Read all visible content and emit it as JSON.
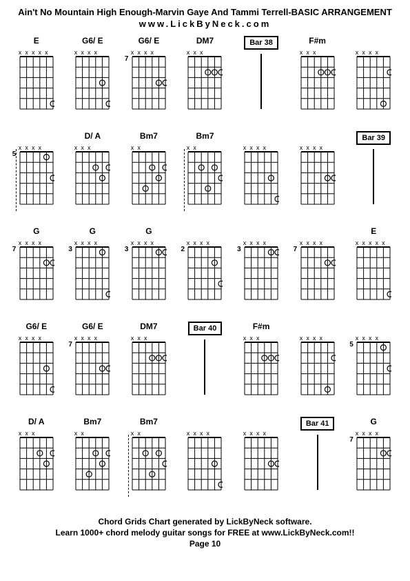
{
  "title": "Ain't No Mountain High Enough-Marvin Gaye And Tammi Terrell-BASIC ARRANGEMENT",
  "subtitle": "www.LickByNeck.com",
  "footer": {
    "line1": "Chord Grids Chart generated by LickByNeck software.",
    "line2": "Learn 1000+ chord melody guitar songs for FREE at www.LickByNeck.com!!",
    "line3": "Page 10"
  },
  "diagram": {
    "width": 52,
    "height": 90,
    "strings": 6,
    "frets": 5,
    "gridColor": "#000000",
    "dotRadius": 4
  },
  "rows": [
    [
      {
        "type": "chord",
        "label": "E",
        "fret": "",
        "mutes": [
          0,
          1,
          2,
          3,
          4
        ],
        "dots": [
          [
            5,
            5
          ]
        ]
      },
      {
        "type": "chord",
        "label": "G6/ E",
        "fret": "",
        "mutes": [
          0,
          1,
          2,
          3
        ],
        "dots": [
          [
            4,
            3
          ],
          [
            5,
            5
          ]
        ]
      },
      {
        "type": "chord",
        "label": "G6/ E",
        "fret": "7",
        "mutes": [
          0,
          1,
          2,
          3
        ],
        "dots": [
          [
            4,
            3
          ],
          [
            5,
            3
          ]
        ]
      },
      {
        "type": "chord",
        "label": "DM7",
        "fret": "",
        "mutes": [
          0,
          1,
          2
        ],
        "dots": [
          [
            3,
            2
          ],
          [
            4,
            2
          ],
          [
            5,
            2
          ]
        ]
      },
      {
        "type": "bar",
        "label": "Bar 38"
      },
      {
        "type": "chord",
        "label": "F#m",
        "fret": "",
        "mutes": [
          0,
          1,
          2
        ],
        "dots": [
          [
            3,
            2
          ],
          [
            4,
            2
          ],
          [
            5,
            2
          ]
        ]
      },
      {
        "type": "chord",
        "label": "",
        "fret": "",
        "mutes": [
          0,
          1,
          2,
          3
        ],
        "dots": [
          [
            4,
            5
          ],
          [
            5,
            2
          ]
        ]
      }
    ],
    [
      {
        "type": "chord",
        "label": "",
        "fret": "5",
        "mutes": [
          0,
          1,
          2,
          3
        ],
        "dashed": true,
        "dots": [
          [
            4,
            1
          ],
          [
            5,
            3
          ]
        ]
      },
      {
        "type": "chord",
        "label": "D/ A",
        "fret": "",
        "mutes": [
          0,
          1,
          2
        ],
        "dots": [
          [
            3,
            2
          ],
          [
            4,
            3
          ],
          [
            5,
            2
          ]
        ]
      },
      {
        "type": "chord",
        "label": "Bm7",
        "fret": "",
        "mutes": [
          0,
          1
        ],
        "dots": [
          [
            2,
            4
          ],
          [
            3,
            2
          ],
          [
            4,
            3
          ],
          [
            5,
            2
          ]
        ]
      },
      {
        "type": "chord",
        "label": "Bm7",
        "fret": "",
        "mutes": [
          0,
          1
        ],
        "dashed": true,
        "dots": [
          [
            2,
            2
          ],
          [
            3,
            4
          ],
          [
            4,
            2
          ],
          [
            5,
            3
          ]
        ]
      },
      {
        "type": "chord",
        "label": "",
        "fret": "",
        "mutes": [
          0,
          1,
          2,
          3
        ],
        "dots": [
          [
            4,
            3
          ],
          [
            5,
            5
          ]
        ]
      },
      {
        "type": "chord",
        "label": "",
        "fret": "",
        "mutes": [
          0,
          1,
          2,
          3
        ],
        "dots": [
          [
            4,
            3
          ],
          [
            5,
            3
          ]
        ]
      },
      {
        "type": "bar",
        "label": "Bar 39"
      }
    ],
    [
      {
        "type": "chord",
        "label": "G",
        "fret": "7",
        "mutes": [
          0,
          1,
          2,
          3
        ],
        "dots": [
          [
            4,
            2
          ],
          [
            5,
            2
          ]
        ]
      },
      {
        "type": "chord",
        "label": "G",
        "fret": "3",
        "mutes": [
          0,
          1,
          2,
          3
        ],
        "dots": [
          [
            4,
            1
          ],
          [
            5,
            5
          ]
        ]
      },
      {
        "type": "chord",
        "label": "G",
        "fret": "3",
        "mutes": [
          0,
          1,
          2,
          3
        ],
        "dots": [
          [
            4,
            1
          ],
          [
            5,
            1
          ]
        ]
      },
      {
        "type": "chord",
        "label": "",
        "fret": "2",
        "mutes": [
          0,
          1,
          2,
          3
        ],
        "dots": [
          [
            4,
            2
          ],
          [
            5,
            4
          ]
        ]
      },
      {
        "type": "chord",
        "label": "",
        "fret": "3",
        "mutes": [
          0,
          1,
          2,
          3
        ],
        "dots": [
          [
            4,
            1
          ],
          [
            5,
            1
          ]
        ]
      },
      {
        "type": "chord",
        "label": "",
        "fret": "7",
        "mutes": [
          0,
          1,
          2,
          3
        ],
        "dots": [
          [
            4,
            2
          ],
          [
            5,
            2
          ]
        ]
      },
      {
        "type": "chord",
        "label": "E",
        "fret": "",
        "mutes": [
          0,
          1,
          2,
          3,
          4
        ],
        "dots": [
          [
            5,
            5
          ]
        ]
      }
    ],
    [
      {
        "type": "chord",
        "label": "G6/ E",
        "fret": "",
        "mutes": [
          0,
          1,
          2,
          3
        ],
        "dots": [
          [
            4,
            3
          ],
          [
            5,
            5
          ]
        ]
      },
      {
        "type": "chord",
        "label": "G6/ E",
        "fret": "7",
        "mutes": [
          0,
          1,
          2,
          3
        ],
        "dots": [
          [
            4,
            3
          ],
          [
            5,
            3
          ]
        ]
      },
      {
        "type": "chord",
        "label": "DM7",
        "fret": "",
        "mutes": [
          0,
          1,
          2
        ],
        "dots": [
          [
            3,
            2
          ],
          [
            4,
            2
          ],
          [
            5,
            2
          ]
        ]
      },
      {
        "type": "bar",
        "label": "Bar 40"
      },
      {
        "type": "chord",
        "label": "F#m",
        "fret": "",
        "mutes": [
          0,
          1,
          2
        ],
        "dots": [
          [
            3,
            2
          ],
          [
            4,
            2
          ],
          [
            5,
            2
          ]
        ]
      },
      {
        "type": "chord",
        "label": "",
        "fret": "",
        "mutes": [
          0,
          1,
          2,
          3
        ],
        "dots": [
          [
            4,
            5
          ],
          [
            5,
            2
          ]
        ]
      },
      {
        "type": "chord",
        "label": "",
        "fret": "5",
        "mutes": [
          0,
          1,
          2,
          3
        ],
        "dots": [
          [
            4,
            1
          ],
          [
            5,
            3
          ]
        ]
      }
    ],
    [
      {
        "type": "chord",
        "label": "D/ A",
        "fret": "",
        "mutes": [
          0,
          1,
          2
        ],
        "dots": [
          [
            3,
            2
          ],
          [
            4,
            3
          ],
          [
            5,
            2
          ]
        ]
      },
      {
        "type": "chord",
        "label": "Bm7",
        "fret": "",
        "mutes": [
          0,
          1
        ],
        "dots": [
          [
            2,
            4
          ],
          [
            3,
            2
          ],
          [
            4,
            3
          ],
          [
            5,
            2
          ]
        ]
      },
      {
        "type": "chord",
        "label": "Bm7",
        "fret": "",
        "mutes": [
          0,
          1
        ],
        "dashed": true,
        "dots": [
          [
            2,
            2
          ],
          [
            3,
            4
          ],
          [
            4,
            2
          ],
          [
            5,
            3
          ]
        ]
      },
      {
        "type": "chord",
        "label": "",
        "fret": "",
        "mutes": [
          0,
          1,
          2,
          3
        ],
        "dots": [
          [
            4,
            3
          ],
          [
            5,
            5
          ]
        ]
      },
      {
        "type": "chord",
        "label": "",
        "fret": "",
        "mutes": [
          0,
          1,
          2,
          3
        ],
        "dots": [
          [
            4,
            3
          ],
          [
            5,
            3
          ]
        ]
      },
      {
        "type": "bar",
        "label": "Bar 41"
      },
      {
        "type": "chord",
        "label": "G",
        "fret": "7",
        "mutes": [
          0,
          1,
          2,
          3
        ],
        "dots": [
          [
            4,
            2
          ],
          [
            5,
            2
          ]
        ]
      }
    ]
  ]
}
